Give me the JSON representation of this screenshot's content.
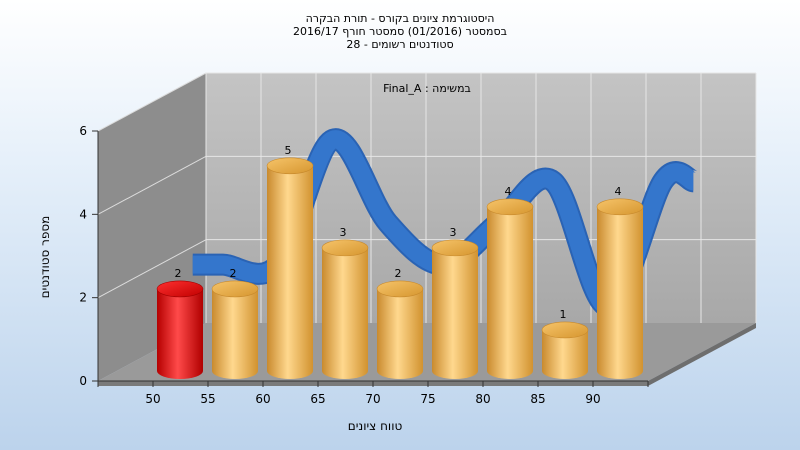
{
  "chart_data": {
    "type": "bar",
    "title": [
      "היסטוגרמת ציונים בקורס - תורת הבקרה",
      "בסמסטר  (01/2016)  סמסטר חורף 2016/17",
      "סטודנטים רשומים - 28"
    ],
    "series_label": "Final_A : במשימה",
    "xlabel": "טווח ציונים",
    "ylabel": "מספר סטודנטים",
    "x_ticks": [
      "50",
      "55",
      "60",
      "65",
      "70",
      "75",
      "80",
      "85",
      "90"
    ],
    "y_ticks": [
      "0",
      "2",
      "4",
      "6"
    ],
    "ylim": [
      0,
      6
    ],
    "categories": [
      "50",
      "55",
      "60",
      "65",
      "70",
      "75",
      "80",
      "85",
      "90"
    ],
    "values": [
      2,
      2,
      5,
      3,
      2,
      3,
      4,
      1,
      4
    ],
    "highlight_index": 0,
    "colors": {
      "bar": "#f0b253",
      "highlight": "#e01515",
      "ribbon": "#3476cc",
      "wall": "#b0b0b0",
      "side_wall": "#8c8c8c",
      "floor": "#9b9b9b"
    }
  }
}
